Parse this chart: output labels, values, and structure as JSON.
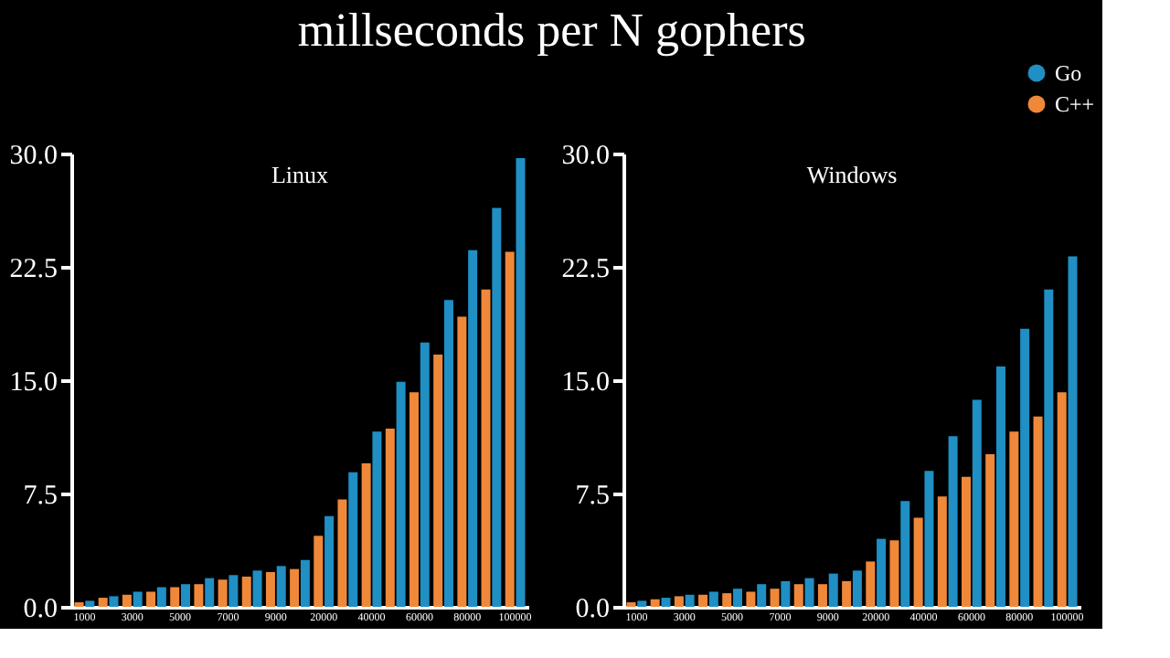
{
  "chart_data": [
    {
      "type": "bar",
      "title": "millseconds per N gophers",
      "subtitle": "Linux",
      "categories": [
        "1000",
        null,
        "3000",
        null,
        "5000",
        null,
        "7000",
        null,
        "9000",
        null,
        "20000",
        null,
        "40000",
        null,
        "60000",
        null,
        "80000",
        null,
        "100000"
      ],
      "series": [
        {
          "name": "C++",
          "color": "#f0883a",
          "values": [
            0.3,
            0.6,
            0.8,
            1.0,
            1.3,
            1.5,
            1.8,
            2.0,
            2.3,
            2.5,
            4.7,
            7.1,
            9.5,
            11.8,
            14.2,
            16.7,
            19.2,
            21.0,
            23.5
          ]
        },
        {
          "name": "Go",
          "color": "#1f8fc4",
          "values": [
            0.4,
            0.7,
            1.0,
            1.3,
            1.5,
            1.9,
            2.1,
            2.4,
            2.7,
            3.1,
            6.0,
            8.9,
            11.6,
            14.9,
            17.5,
            20.3,
            23.6,
            26.4,
            29.7
          ]
        }
      ],
      "ylim": [
        0,
        30
      ],
      "yticks": [
        {
          "value": 0,
          "label": "0.0"
        },
        {
          "value": 7.5,
          "label": "7.5"
        },
        {
          "value": 15,
          "label": "15.0"
        },
        {
          "value": 22.5,
          "label": "22.5"
        },
        {
          "value": 30,
          "label": "30.0"
        }
      ],
      "grid": false,
      "legend": "top right"
    },
    {
      "type": "bar",
      "subtitle": "Windows",
      "categories": [
        "1000",
        null,
        "3000",
        null,
        "5000",
        null,
        "7000",
        null,
        "9000",
        null,
        "20000",
        null,
        "40000",
        null,
        "60000",
        null,
        "80000",
        null,
        "100000"
      ],
      "series": [
        {
          "color": "#f0883a",
          "values": [
            0.3,
            0.5,
            0.7,
            0.8,
            0.9,
            1.0,
            1.2,
            1.5,
            1.5,
            1.7,
            3.0,
            4.4,
            5.9,
            7.3,
            8.6,
            10.1,
            11.6,
            12.6,
            14.2
          ]
        },
        {
          "color": "#1f8fc4",
          "values": [
            0.4,
            0.6,
            0.8,
            1.0,
            1.2,
            1.5,
            1.7,
            1.9,
            2.2,
            2.4,
            4.5,
            7.0,
            9.0,
            11.3,
            13.7,
            15.9,
            18.4,
            21.0,
            23.2
          ]
        }
      ],
      "ylim": [
        0,
        30
      ],
      "yticks": [
        {
          "value": 0,
          "label": "0.0"
        },
        {
          "value": 7.5,
          "label": "7.5"
        },
        {
          "value": 15,
          "label": "15.0"
        },
        {
          "value": 22.5,
          "label": "22.5"
        },
        {
          "value": 30,
          "label": "30.0"
        }
      ],
      "grid": false,
      "legend": false
    }
  ]
}
